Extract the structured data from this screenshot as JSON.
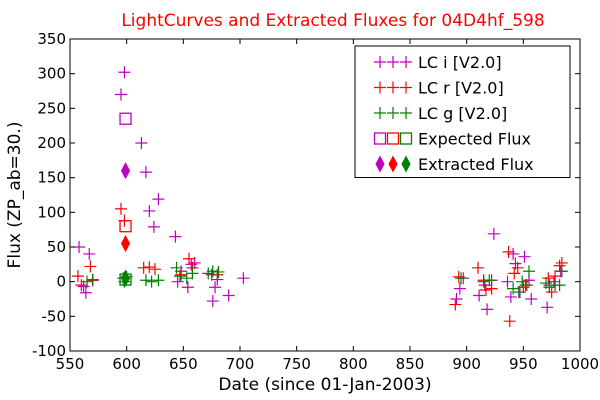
{
  "chart_data": {
    "type": "scatter",
    "title": "LightCurves and Extracted Fluxes for 04D4hf_598",
    "xlabel": "Date (since 01-Jan-2003)",
    "ylabel": "Flux (ZP_ab=30.)",
    "xlim": [
      550,
      1000
    ],
    "ylim": [
      -100,
      350
    ],
    "xticks": [
      550,
      600,
      650,
      700,
      750,
      800,
      850,
      900,
      950,
      1000
    ],
    "yticks": [
      -100,
      -50,
      0,
      50,
      100,
      150,
      200,
      250,
      300,
      350
    ],
    "grid": false,
    "legend_position": "top-right",
    "colors": {
      "i": "#bf00bf",
      "r": "#ff0000",
      "g": "#008000",
      "title": "#ff0000"
    },
    "series": [
      {
        "name": "LC i [V2.0]",
        "marker": "plus",
        "color": "#bf00bf",
        "points": [
          [
            558,
            50
          ],
          [
            562,
            -7
          ],
          [
            564,
            -16
          ],
          [
            567,
            40
          ],
          [
            570,
            2
          ],
          [
            595,
            270
          ],
          [
            598,
            302
          ],
          [
            613,
            200
          ],
          [
            617,
            158
          ],
          [
            620,
            102
          ],
          [
            624,
            79
          ],
          [
            628,
            119
          ],
          [
            643,
            65
          ],
          [
            645,
            0
          ],
          [
            648,
            15
          ],
          [
            654,
            -8
          ],
          [
            657,
            25
          ],
          [
            660,
            27
          ],
          [
            675,
            10
          ],
          [
            676,
            -28
          ],
          [
            678,
            -8
          ],
          [
            680,
            3
          ],
          [
            690,
            -20
          ],
          [
            703,
            5
          ],
          [
            891,
            -25
          ],
          [
            894,
            -10
          ],
          [
            897,
            5
          ],
          [
            911,
            -20
          ],
          [
            916,
            -5
          ],
          [
            918,
            -40
          ],
          [
            922,
            2
          ],
          [
            924,
            69
          ],
          [
            936,
            0
          ],
          [
            939,
            -22
          ],
          [
            941,
            40
          ],
          [
            943,
            26
          ],
          [
            947,
            -15
          ],
          [
            951,
            36
          ],
          [
            955,
            2
          ],
          [
            957,
            -25
          ],
          [
            971,
            -37
          ],
          [
            973,
            -5
          ],
          [
            977,
            0
          ],
          [
            983,
            15
          ]
        ]
      },
      {
        "name": "LC r [V2.0]",
        "marker": "plus",
        "color": "#ff0000",
        "points": [
          [
            557,
            8
          ],
          [
            560,
            -5
          ],
          [
            568,
            22
          ],
          [
            570,
            2
          ],
          [
            595,
            105
          ],
          [
            598,
            88
          ],
          [
            615,
            20
          ],
          [
            620,
            21
          ],
          [
            625,
            18
          ],
          [
            648,
            10
          ],
          [
            655,
            33
          ],
          [
            658,
            20
          ],
          [
            680,
            10
          ],
          [
            890,
            -33
          ],
          [
            893,
            7
          ],
          [
            910,
            20
          ],
          [
            915,
            2
          ],
          [
            917,
            -12
          ],
          [
            922,
            -10
          ],
          [
            937,
            43
          ],
          [
            938,
            -57
          ],
          [
            942,
            12
          ],
          [
            945,
            20
          ],
          [
            950,
            -8
          ],
          [
            953,
            -5
          ],
          [
            972,
            5
          ],
          [
            975,
            -15
          ],
          [
            978,
            8
          ],
          [
            982,
            23
          ],
          [
            984,
            27
          ]
        ]
      },
      {
        "name": "LC g [V2.0]",
        "marker": "plus",
        "color": "#008000",
        "points": [
          [
            565,
            0
          ],
          [
            570,
            3
          ],
          [
            597,
            5
          ],
          [
            598,
            0
          ],
          [
            600,
            7
          ],
          [
            617,
            2
          ],
          [
            622,
            0
          ],
          [
            628,
            2
          ],
          [
            644,
            20
          ],
          [
            647,
            8
          ],
          [
            653,
            5
          ],
          [
            658,
            12
          ],
          [
            672,
            12
          ],
          [
            676,
            15
          ],
          [
            681,
            14
          ],
          [
            895,
            5
          ],
          [
            915,
            0
          ],
          [
            920,
            2
          ],
          [
            941,
            -10
          ],
          [
            946,
            -15
          ],
          [
            949,
            0
          ],
          [
            952,
            -5
          ],
          [
            955,
            15
          ],
          [
            970,
            -2
          ],
          [
            973,
            -8
          ],
          [
            978,
            -5
          ],
          [
            982,
            -5
          ],
          [
            984,
            15
          ]
        ]
      },
      {
        "name": "Expected Flux",
        "marker": "square",
        "color": "#bf00bf",
        "points": [
          [
            599,
            235
          ],
          [
            599,
            80
          ],
          [
            599,
            3
          ]
        ],
        "point_colors": [
          "#bf00bf",
          "#ff0000",
          "#008000"
        ]
      },
      {
        "name": "Extracted Flux",
        "marker": "diamond",
        "color": "#bf00bf",
        "points": [
          [
            599,
            160
          ],
          [
            599,
            55
          ],
          [
            599,
            5
          ]
        ],
        "point_colors": [
          "#bf00bf",
          "#ff0000",
          "#008000"
        ]
      }
    ]
  }
}
